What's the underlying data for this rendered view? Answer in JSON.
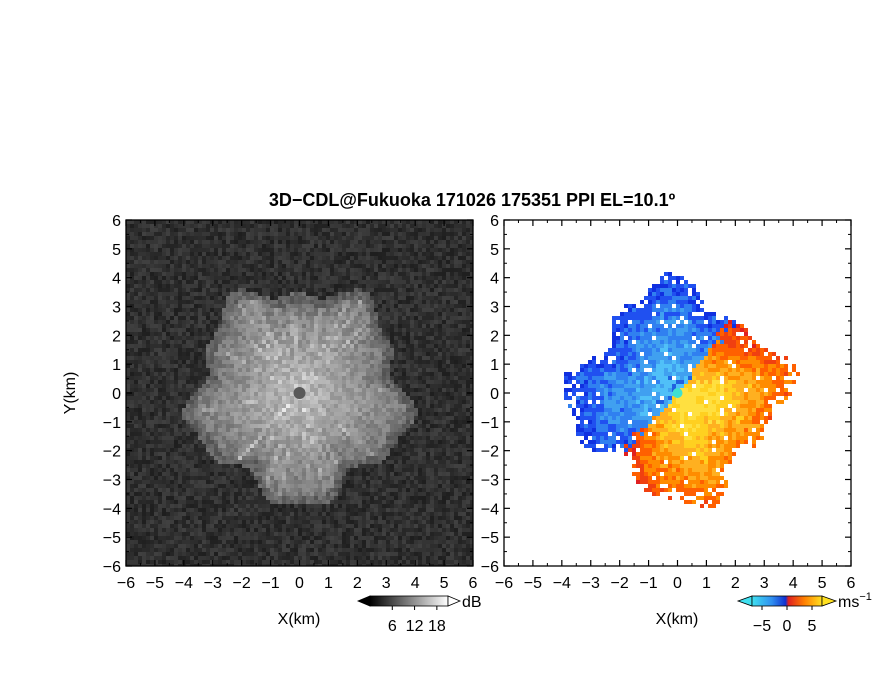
{
  "title": "3D−CDL@Fukuoka 171026 175351 PPI EL=10.1º",
  "chart_data": [
    {
      "type": "heatmap",
      "panel": "left",
      "description_units": "dB",
      "xlabel": "X(km)",
      "ylabel": "Y(km)",
      "xlim": [
        -6,
        6
      ],
      "ylim": [
        -6,
        6
      ],
      "x_ticks": [
        "−6",
        "−5",
        "−4",
        "−3",
        "−2",
        "−1",
        "0",
        "1",
        "2",
        "3",
        "4",
        "5",
        "6"
      ],
      "y_ticks": [
        "6",
        "5",
        "4",
        "3",
        "2",
        "1",
        "0",
        "−1",
        "−2",
        "−3",
        "−4",
        "−5",
        "−6"
      ],
      "colorbar": {
        "unit": "dB",
        "ticks": [
          "6",
          "12",
          "18"
        ],
        "range": [
          0,
          21
        ],
        "colormap": "grayscale"
      },
      "echo_radius_km": 3.6,
      "center_km": [
        0,
        0
      ]
    },
    {
      "type": "heatmap",
      "panel": "right",
      "description_units": "ms⁻¹",
      "xlabel": "X(km)",
      "ylabel": "",
      "xlim": [
        -6,
        6
      ],
      "ylim": [
        -6,
        6
      ],
      "x_ticks": [
        "−6",
        "−5",
        "−4",
        "−3",
        "−2",
        "−1",
        "0",
        "1",
        "2",
        "3",
        "4",
        "5",
        "6"
      ],
      "y_ticks": [
        "6",
        "5",
        "4",
        "3",
        "2",
        "1",
        "0",
        "−1",
        "−2",
        "−3",
        "−4",
        "−5",
        "−6"
      ],
      "colorbar": {
        "unit": "ms",
        "unit_exp": "−1",
        "ticks": [
          "−5",
          "0",
          "5"
        ],
        "range": [
          -7,
          7
        ],
        "colormap": "blue-red-yellow"
      },
      "echo_radius_km": 4.0,
      "center_km": [
        0,
        0
      ]
    }
  ],
  "colors": {
    "blue_dark": "#1030e0",
    "blue_light": "#40c0f0",
    "cyan": "#40e0d0",
    "red": "#e02020",
    "orange": "#ff8c00",
    "yellow": "#ffe020"
  }
}
